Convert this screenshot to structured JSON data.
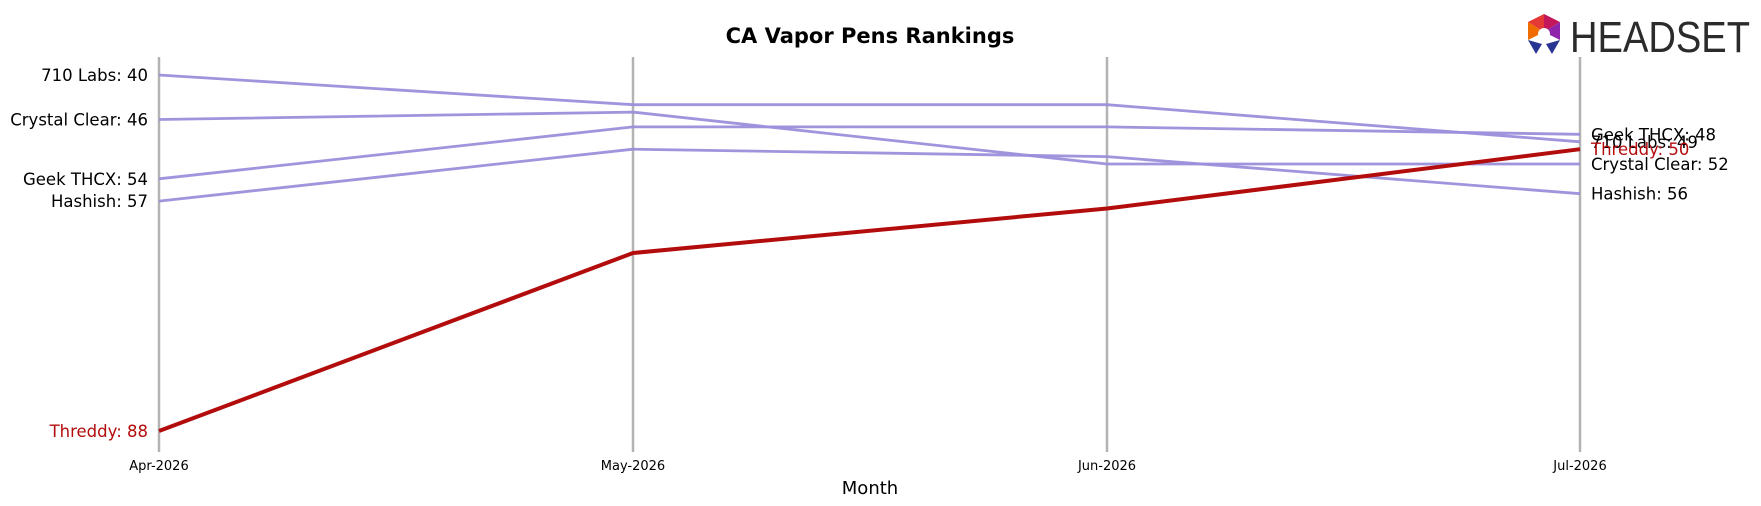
{
  "chart_data": {
    "type": "line",
    "title": "CA Vapor Pens Rankings",
    "xlabel": "Month",
    "ylabel": "",
    "x": [
      "Apr-2026",
      "May-2026",
      "Jun-2026",
      "Jul-2026"
    ],
    "y_inverted": true,
    "ylim": [
      37,
      91
    ],
    "grid": "vertical lines at each month",
    "series": [
      {
        "name": "710 Labs",
        "values": [
          40,
          44,
          44,
          49
        ],
        "color": "#9b8fdb"
      },
      {
        "name": "Crystal Clear",
        "values": [
          46,
          45,
          52,
          52
        ],
        "color": "#9b8fdb"
      },
      {
        "name": "Geek THCX",
        "values": [
          54,
          47,
          47,
          48
        ],
        "color": "#9b8fdb"
      },
      {
        "name": "Hashish",
        "values": [
          57,
          50,
          51,
          56
        ],
        "color": "#9b8fdb"
      },
      {
        "name": "Threddy",
        "values": [
          88,
          64,
          58,
          50
        ],
        "color": "#b30c0c",
        "highlight": true
      }
    ],
    "left_labels": [
      {
        "series": "710 Labs",
        "text": "710 Labs: 40"
      },
      {
        "series": "Crystal Clear",
        "text": "Crystal Clear: 46"
      },
      {
        "series": "Geek THCX",
        "text": "Geek THCX: 54"
      },
      {
        "series": "Hashish",
        "text": "Hashish: 57"
      },
      {
        "series": "Threddy",
        "text": "Threddy: 88"
      }
    ],
    "right_labels": [
      {
        "series": "Geek THCX",
        "text": "Geek THCX: 48"
      },
      {
        "series": "710 Labs",
        "text": "710 Labs: 49"
      },
      {
        "series": "Threddy",
        "text": "Threddy: 50"
      },
      {
        "series": "Crystal Clear",
        "text": "Crystal Clear: 52"
      },
      {
        "series": "Hashish",
        "text": "Hashish: 56"
      }
    ]
  },
  "logo": {
    "text": "HEADSET",
    "colors": [
      "#e8572b",
      "#c2185b",
      "#7b1fa2",
      "#283593"
    ]
  }
}
